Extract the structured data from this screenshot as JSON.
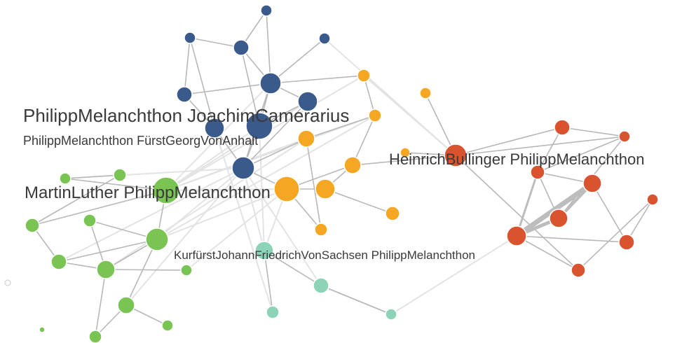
{
  "labels": [
    "PhilippMelanchthon JoachimCamerarius",
    "PhilippMelanchthon FürstGeorgVonAnhalt",
    "HeinrichBullinger PhilippMelanchthon",
    "MartinLuther PhilippMelanchthon",
    "KurfürstJohannFriedrichVonSachsen PhilippMelanchthon"
  ]
}
